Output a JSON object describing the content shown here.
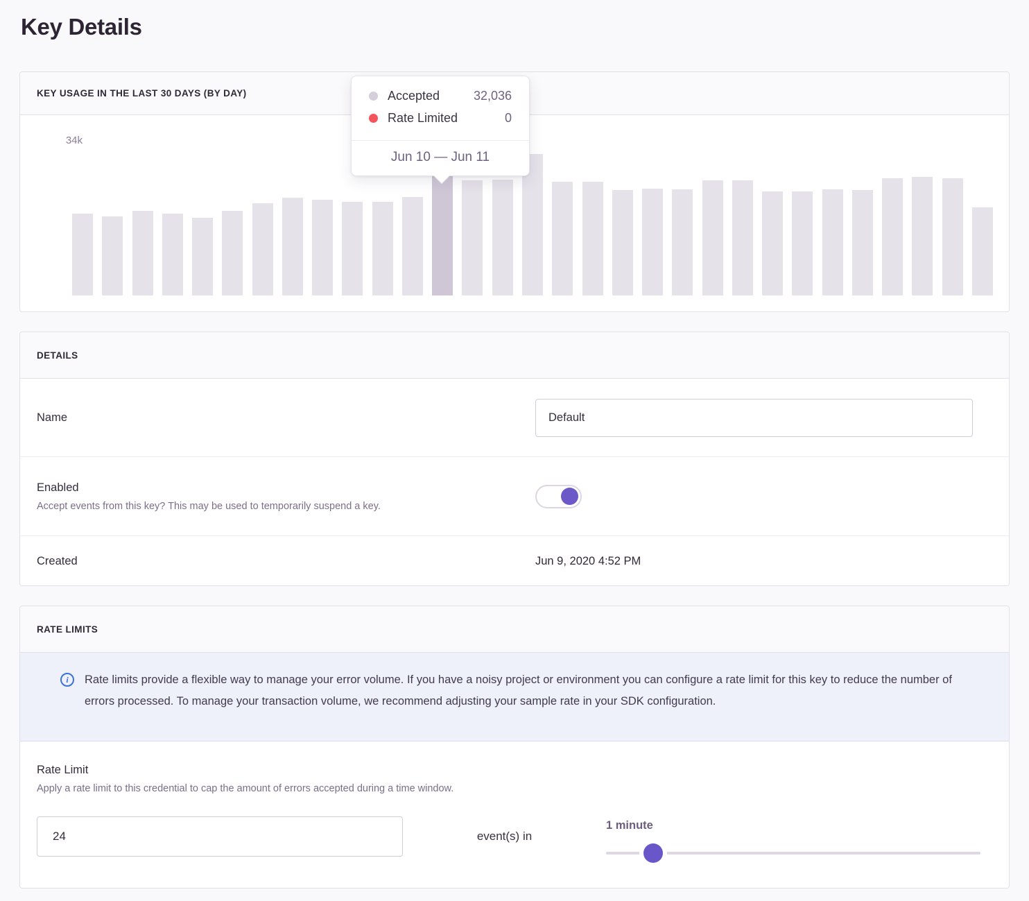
{
  "page": {
    "title": "Key Details"
  },
  "usage_panel": {
    "header": "KEY USAGE IN THE LAST 30 DAYS (BY DAY)",
    "tooltip": {
      "rows": [
        {
          "label": "Accepted",
          "value": "32,036",
          "dot_color": "#d5cedb"
        },
        {
          "label": "Rate Limited",
          "value": "0",
          "dot_color": "#f4555a"
        }
      ],
      "footer": "Jun 10 — Jun 11"
    },
    "chart_data": {
      "type": "bar",
      "title": "KEY USAGE IN THE LAST 30 DAYS (BY DAY)",
      "ylabel": "",
      "xlabel": "",
      "ylim": [
        0,
        34000
      ],
      "yticks": [
        "0",
        "34k"
      ],
      "grid": false,
      "legend_position": "tooltip-only",
      "series": [
        {
          "name": "Accepted",
          "color": "#e6e2ea",
          "values": [
            18100,
            17500,
            18700,
            18100,
            17200,
            18700,
            20400,
            21600,
            21100,
            20700,
            20700,
            21800,
            32036,
            25400,
            25600,
            31200,
            25100,
            25100,
            23300,
            23600,
            23400,
            25400,
            25400,
            23000,
            23000,
            23400,
            23300,
            25900,
            26200,
            25900,
            19500
          ]
        },
        {
          "name": "Rate Limited",
          "color": "#f4555a",
          "values": [
            0,
            0,
            0,
            0,
            0,
            0,
            0,
            0,
            0,
            0,
            0,
            0,
            0,
            0,
            0,
            0,
            0,
            0,
            0,
            0,
            0,
            0,
            0,
            0,
            0,
            0,
            0,
            0,
            0,
            0,
            0
          ]
        }
      ],
      "hover": {
        "index": 12,
        "label": "Jun 10 — Jun 11",
        "accepted": 32036,
        "rate_limited": 0
      }
    },
    "y_axis": {
      "top": "34k",
      "bottom": "0"
    }
  },
  "details_panel": {
    "header": "DETAILS",
    "name_row": {
      "label": "Name",
      "value": "Default"
    },
    "enabled_row": {
      "label": "Enabled",
      "help": "Accept events from this key? This may be used to temporarily suspend a key.",
      "state": "on"
    },
    "created_row": {
      "label": "Created",
      "value": "Jun 9, 2020 4:52 PM"
    }
  },
  "rate_limits_panel": {
    "header": "RATE LIMITS",
    "alert": {
      "icon": "info-icon",
      "text": "Rate limits provide a flexible way to manage your error volume. If you have a noisy project or environment you can configure a rate limit for this key to reduce the number of errors processed. To manage your transaction volume, we recommend adjusting your sample rate in your SDK configuration."
    },
    "rate_limit": {
      "label": "Rate Limit",
      "help": "Apply a rate limit to this credential to cap the amount of errors accepted during a time window.",
      "count_value": "24",
      "connector": "event(s) in",
      "window_label": "1 minute",
      "slider_percent": 12.6
    }
  },
  "colors": {
    "accent_purple": "#6a59c6",
    "bar": "#e6e2ea",
    "bar_hover": "#cfc7d6",
    "rate_limited_red": "#f4555a",
    "info_blue": "#3b72d8",
    "panel_border": "#e4e0e8"
  }
}
